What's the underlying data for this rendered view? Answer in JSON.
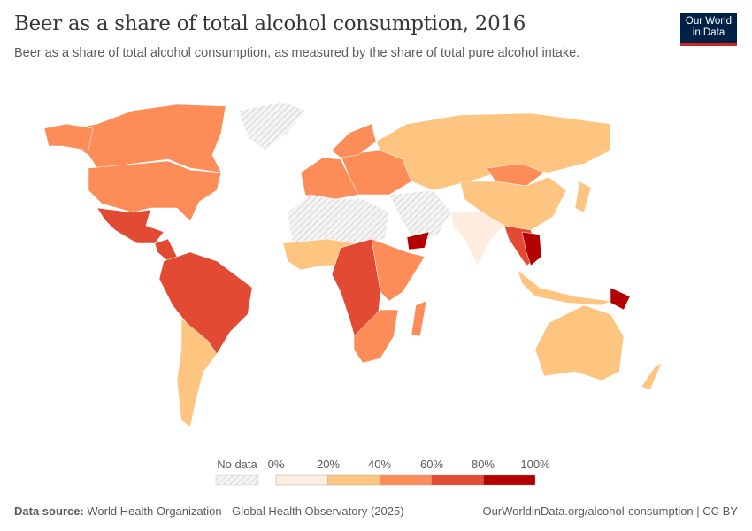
{
  "header": {
    "title": "Beer as a share of total alcohol consumption, 2016",
    "subtitle": "Beer as a share of total alcohol consumption, as measured by the share of total pure alcohol intake.",
    "logo": "Our World in Data"
  },
  "chart_data": {
    "type": "choropleth-map",
    "title": "Beer as a share of total alcohol consumption, 2016",
    "unit": "%",
    "legend": {
      "no_data_label": "No data",
      "no_data_color": "#e0e0e0",
      "ticks": [
        "0%",
        "20%",
        "40%",
        "60%",
        "80%",
        "100%"
      ],
      "bins": [
        {
          "range": [
            0,
            20
          ],
          "color": "#feedde"
        },
        {
          "range": [
            20,
            40
          ],
          "color": "#fdc57f"
        },
        {
          "range": [
            40,
            60
          ],
          "color": "#fc8d59"
        },
        {
          "range": [
            60,
            80
          ],
          "color": "#e34a33"
        },
        {
          "range": [
            80,
            100
          ],
          "color": "#b30000"
        }
      ]
    },
    "regions": [
      {
        "id": "canada",
        "bin": 2
      },
      {
        "id": "alaska",
        "bin": 2
      },
      {
        "id": "usa",
        "bin": 2
      },
      {
        "id": "greenland",
        "bin": -1
      },
      {
        "id": "mexico",
        "bin": 3
      },
      {
        "id": "central-america",
        "bin": 3
      },
      {
        "id": "south-america-north",
        "bin": 3
      },
      {
        "id": "southern-cone",
        "bin": 1
      },
      {
        "id": "europe-west",
        "bin": 2
      },
      {
        "id": "europe-east",
        "bin": 2
      },
      {
        "id": "scandinavia",
        "bin": 2
      },
      {
        "id": "russia-central-asia",
        "bin": 1
      },
      {
        "id": "mongolia",
        "bin": 2
      },
      {
        "id": "china",
        "bin": 1
      },
      {
        "id": "india",
        "bin": 0
      },
      {
        "id": "middle-east",
        "bin": -1
      },
      {
        "id": "north-africa",
        "bin": -1
      },
      {
        "id": "west-africa",
        "bin": 1
      },
      {
        "id": "central-africa",
        "bin": 3
      },
      {
        "id": "east-africa",
        "bin": 2
      },
      {
        "id": "southern-africa",
        "bin": 2
      },
      {
        "id": "madagascar",
        "bin": 2
      },
      {
        "id": "southeast-asia",
        "bin": 3
      },
      {
        "id": "vietnam-laos",
        "bin": 4
      },
      {
        "id": "indonesia",
        "bin": 1
      },
      {
        "id": "australia",
        "bin": 1
      },
      {
        "id": "new-zealand",
        "bin": 1
      },
      {
        "id": "papua-new-guinea",
        "bin": 4
      },
      {
        "id": "japan",
        "bin": 1
      },
      {
        "id": "yemen",
        "bin": 4
      }
    ]
  },
  "footer": {
    "source_label": "Data source:",
    "source": "World Health Organization - Global Health Observatory (2025)",
    "url": "OurWorldinData.org/alcohol-consumption | CC BY"
  }
}
